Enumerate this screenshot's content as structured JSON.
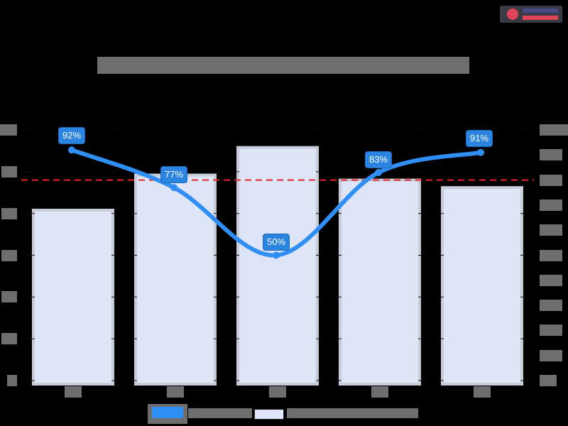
{
  "chart_data": {
    "type": "bar",
    "title": "",
    "title_note": "title text obscured in source",
    "xlabel": "",
    "ylabel_left": "",
    "ylabel_right": "",
    "categories": [
      "",
      "",
      "",
      "",
      ""
    ],
    "series": [
      {
        "name": "",
        "type": "bar",
        "axis": "right",
        "values": [
          6.8,
          8.2,
          9.3,
          8.0,
          7.7
        ],
        "color": "#dde5f7"
      },
      {
        "name": "",
        "type": "line",
        "axis": "left",
        "values": [
          92,
          77,
          50,
          83,
          91
        ],
        "labels": [
          "92%",
          "77%",
          "50%",
          "83%",
          "91%"
        ],
        "color": "#2f8ff5"
      }
    ],
    "reference_line": {
      "axis": "left",
      "value": 80,
      "color": "#e8232a",
      "style": "dashed"
    },
    "ylim_left": [
      0,
      100
    ],
    "ylim_right": [
      0,
      10
    ],
    "left_ticks": 7,
    "right_ticks": 11,
    "grid": false,
    "legend_position": "bottom"
  },
  "title": "",
  "left_axis_labels": [
    "",
    "",
    "",
    "",
    "",
    "",
    ""
  ],
  "right_axis_labels": [
    "",
    "",
    "",
    "",
    "",
    "",
    "",
    "",
    "",
    "",
    ""
  ],
  "x_labels": [
    "",
    "",
    "",
    "",
    ""
  ],
  "data_labels": [
    "92%",
    "77%",
    "50%",
    "83%",
    "91%"
  ],
  "legend": {
    "line_label": "",
    "bar_label": ""
  },
  "colors": {
    "line": "#2f8ff5",
    "bar": "#dde5f7",
    "bar_border": "#c8ccd8",
    "target": "#e8232a",
    "label_bg": "#2a84e0"
  }
}
